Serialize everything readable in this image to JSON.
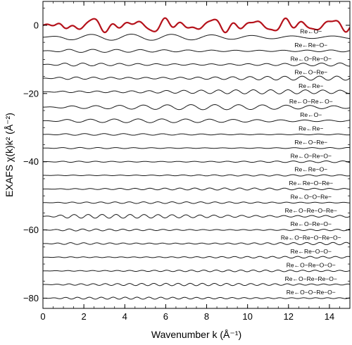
{
  "chart_data": {
    "type": "line",
    "xlabel": "Wavenumber k (Å⁻¹)",
    "ylabel": "EXAFS χ(k)k² (Å⁻²)",
    "xlim": [
      0,
      15
    ],
    "ylim": [
      -83,
      7
    ],
    "x_ticks": [
      0,
      2,
      4,
      6,
      8,
      10,
      12,
      14
    ],
    "y_ticks": [
      0,
      -20,
      -40,
      -60,
      -80
    ],
    "x_tick_labels": [
      "0",
      "2",
      "4",
      "6",
      "8",
      "10",
      "12",
      "14"
    ],
    "y_tick_labels": [
      "0",
      "−20",
      "−40",
      "−60",
      "−80"
    ],
    "grid": false,
    "colors": {
      "total": "#b5121b",
      "paths": "#1a1a1a",
      "frame": "#000000"
    },
    "total_series": {
      "offset": 0
    },
    "paths": [
      {
        "label": "Re←O−",
        "offset": -3.5,
        "amp": 0.9,
        "freq": 3.2,
        "phase": 0.3
      },
      {
        "label": "Re←Re−O−",
        "offset": -7.5,
        "amp": 0.45,
        "freq": 5.4,
        "phase": 1.0
      },
      {
        "label": "Re←O−Re−O−",
        "offset": -11.5,
        "amp": 0.5,
        "freq": 7.0,
        "phase": 0.5
      },
      {
        "label": "Re←O−Re−",
        "offset": -15.5,
        "amp": 0.6,
        "freq": 7.4,
        "phase": 2.1
      },
      {
        "label": "Re←Re−",
        "offset": -19.5,
        "amp": 0.6,
        "freq": 7.4,
        "phase": 0.9
      },
      {
        "label": "Re←O−Re←O−",
        "offset": -24,
        "amp": 0.75,
        "freq": 5.4,
        "phase": 0.2
      },
      {
        "label": "Re←O−",
        "offset": -28,
        "amp": 0.55,
        "freq": 5.4,
        "phase": 1.6
      },
      {
        "label": "Re←Re−",
        "offset": -32,
        "amp": 0.25,
        "freq": 6.6,
        "phase": 0.7
      },
      {
        "label": "Re←O−Re−",
        "offset": -36,
        "amp": 0.2,
        "freq": 7.2,
        "phase": 1.1
      },
      {
        "label": "Re←O−Re−O−",
        "offset": -40,
        "amp": 0.25,
        "freq": 7.8,
        "phase": 0.4
      },
      {
        "label": "Re←Re−O−",
        "offset": -44,
        "amp": 0.2,
        "freq": 8.2,
        "phase": 2.0
      },
      {
        "label": "Re←Re−O−Re−",
        "offset": -48,
        "amp": 0.3,
        "freq": 8.6,
        "phase": 0.6
      },
      {
        "label": "Re←O−O−Re−",
        "offset": -52,
        "amp": 0.25,
        "freq": 9.0,
        "phase": 1.3
      },
      {
        "label": "Re←O−Re−O−Re−",
        "offset": -56,
        "amp": 0.55,
        "freq": 9.2,
        "phase": 0.1
      },
      {
        "label": "Re←O−Re−O−",
        "offset": -60,
        "amp": 0.3,
        "freq": 9.6,
        "phase": 1.8
      },
      {
        "label": "Re←O−Re−O−Re−O−",
        "offset": -64,
        "amp": 0.35,
        "freq": 9.8,
        "phase": 0.9
      },
      {
        "label": "Re←Re−O−O−",
        "offset": -68,
        "amp": 0.25,
        "freq": 10.2,
        "phase": 0.3
      },
      {
        "label": "Re←O−Re−O−O−",
        "offset": -72,
        "amp": 0.25,
        "freq": 10.4,
        "phase": 1.5
      },
      {
        "label": "Re←O−Re−Re−O−",
        "offset": -76,
        "amp": 0.35,
        "freq": 10.6,
        "phase": 0.7
      },
      {
        "label": "Re←O−O−Re−O−",
        "offset": -80,
        "amp": 0.3,
        "freq": 10.8,
        "phase": 2.2
      }
    ]
  }
}
